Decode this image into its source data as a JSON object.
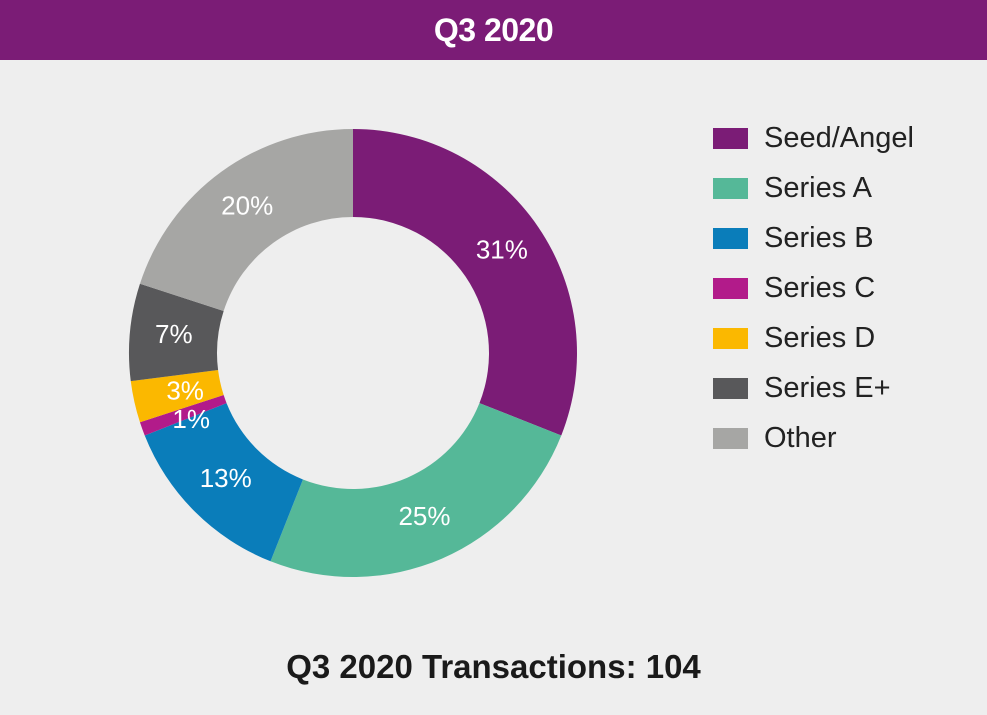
{
  "header": {
    "title": "Q3 2020"
  },
  "footer": {
    "caption": "Q3 2020 Transactions: 104"
  },
  "chart_data": {
    "type": "pie",
    "donut": true,
    "title": "Q3 2020",
    "categories": [
      "Seed/Angel",
      "Series A",
      "Series B",
      "Series C",
      "Series D",
      "Series E+",
      "Other"
    ],
    "values": [
      31,
      25,
      13,
      1,
      3,
      7,
      20
    ],
    "labels": [
      "31%",
      "25%",
      "13%",
      "1%",
      "3%",
      "7%",
      "20%"
    ],
    "colors": [
      "#7b1c76",
      "#55b898",
      "#0a7dba",
      "#b21b8a",
      "#fbb800",
      "#58585a",
      "#a6a6a4"
    ],
    "legend_position": "right"
  }
}
